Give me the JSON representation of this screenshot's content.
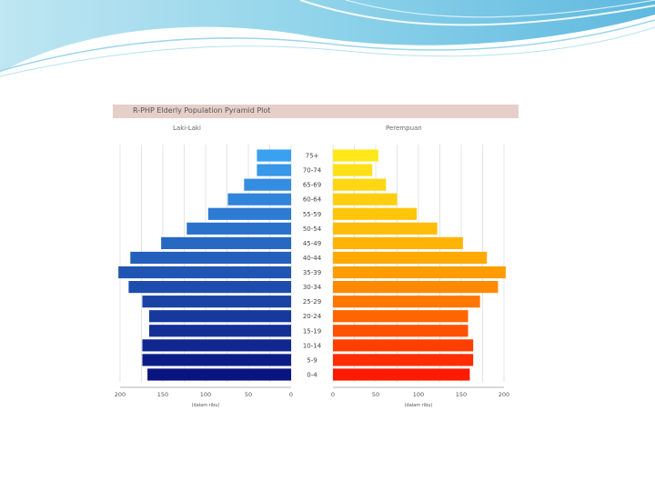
{
  "chart_data": {
    "type": "bar",
    "title": "R-PHP Elderly Population Pyramid Plot",
    "left_panel_label": "Laki-Laki",
    "right_panel_label": "Perempuan",
    "xlabel_left": "(dalam ribu)",
    "xlabel_right": "(dalam ribu)",
    "age_groups": [
      "75+",
      "70-74",
      "65-69",
      "60-64",
      "55-59",
      "50-54",
      "45-49",
      "40-44",
      "35-39",
      "30-34",
      "25-29",
      "20-24",
      "15-19",
      "10-14",
      "5-9",
      "0-4"
    ],
    "series": [
      {
        "name": "Laki-Laki",
        "values": [
          40,
          40,
          55,
          74,
          97,
          122,
          152,
          188,
          202,
          190,
          174,
          166,
          166,
          174,
          174,
          168
        ]
      },
      {
        "name": "Perempuan",
        "values": [
          53,
          46,
          62,
          75,
          98,
          122,
          152,
          180,
          202,
          193,
          172,
          158,
          158,
          164,
          164,
          160
        ]
      }
    ],
    "left_ticks": [
      "200",
      "150",
      "100",
      "50",
      "0"
    ],
    "right_ticks": [
      "0",
      "50",
      "100",
      "150",
      "200"
    ],
    "xlim": [
      0,
      200
    ],
    "grid": true,
    "colors": {
      "male_top": "#3aa0f0",
      "male_bottom": "#0a1480",
      "female_top": "#ffe81a",
      "female_bottom": "#ff1a00"
    }
  }
}
